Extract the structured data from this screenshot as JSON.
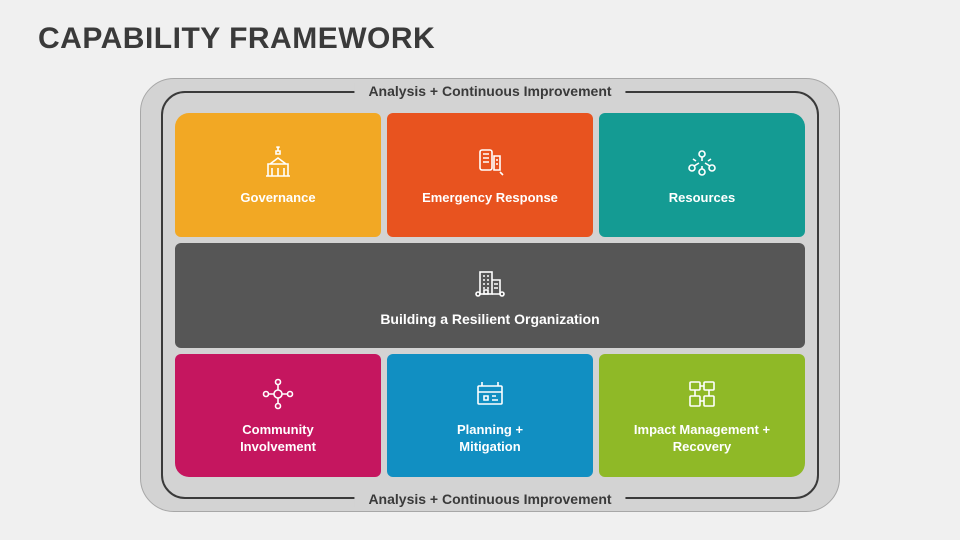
{
  "title": "CAPABILITY FRAMEWORK",
  "frame_label": "Analysis + Continuous Improvement",
  "center": {
    "label": "Building a Resilient Organization",
    "color": "#565656",
    "icon": "building"
  },
  "cards": {
    "top": [
      {
        "label": "Governance",
        "color": "#f2a824",
        "icon": "government"
      },
      {
        "label": "Emergency Response",
        "color": "#e8531f",
        "icon": "alert-device"
      },
      {
        "label": "Resources",
        "color": "#149b93",
        "icon": "people-network"
      }
    ],
    "bottom": [
      {
        "label": "Community\nInvolvement",
        "color": "#c5165f",
        "icon": "community"
      },
      {
        "label": "Planning +\nMitigation",
        "color": "#118fc2",
        "icon": "planning"
      },
      {
        "label": "Impact Management +\nRecovery",
        "color": "#8fb927",
        "icon": "recovery"
      }
    ]
  },
  "style": {
    "page_bg": "#f0f0f0",
    "outer_bg": "#d3d3d3",
    "border_color": "#3a3a3a",
    "title_color": "#3a3a3a",
    "title_fontsize": 30,
    "label_fontsize": 14,
    "card_label_fontsize": 13,
    "text_color": "#ffffff"
  }
}
